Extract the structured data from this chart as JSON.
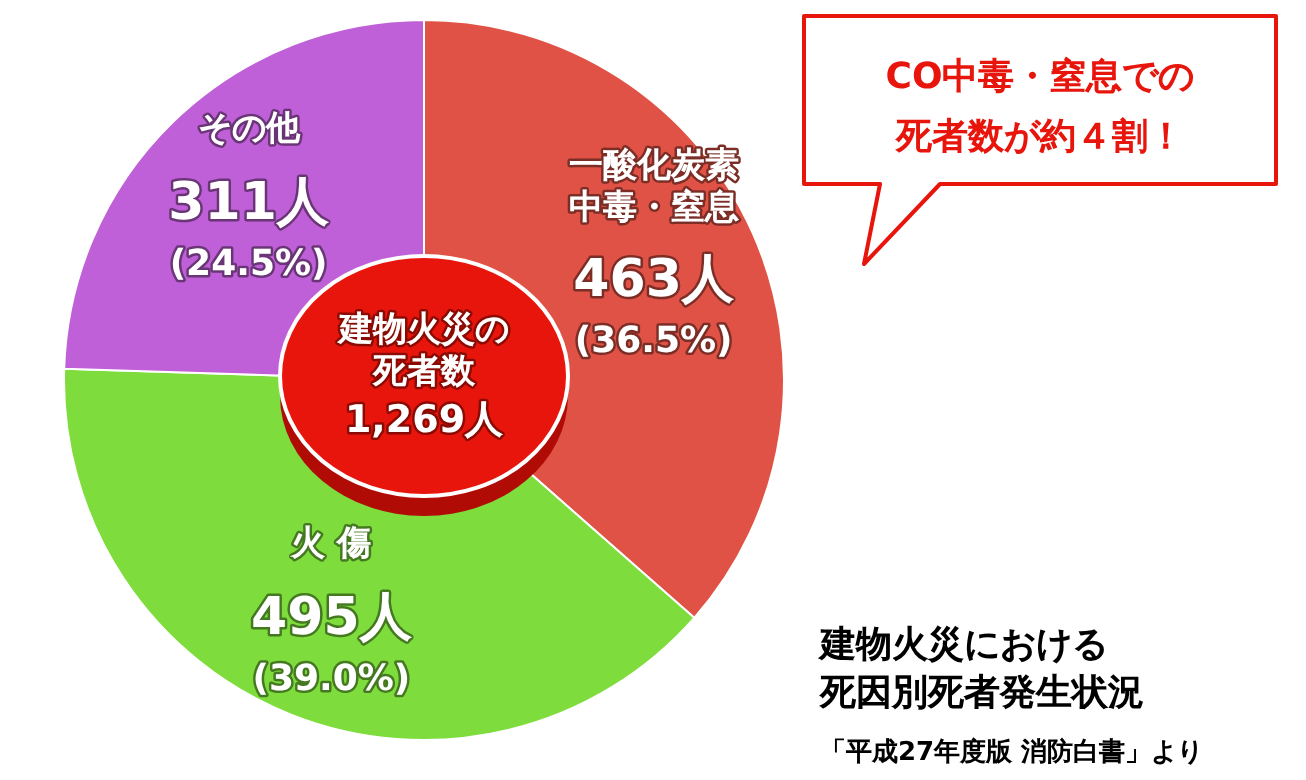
{
  "chart_data": {
    "type": "pie",
    "title": "建物火災における死因別死者発生状況",
    "categories": [
      "一酸化炭素中毒・窒息",
      "火 傷",
      "その他"
    ],
    "values": [
      463,
      495,
      311
    ],
    "colors": [
      "#e05245",
      "#7edc3c",
      "#c060d8"
    ],
    "value_labels": [
      "463人\n(36.5%)",
      "495人\n(39.0%)",
      "311人\n(24.5%)"
    ],
    "annotations": [
      "建物火災の死者数",
      "1,269人",
      "CO中毒・窒息での死者数が約４割！",
      "「平成27年度版 消防白書」より"
    ]
  }
}
